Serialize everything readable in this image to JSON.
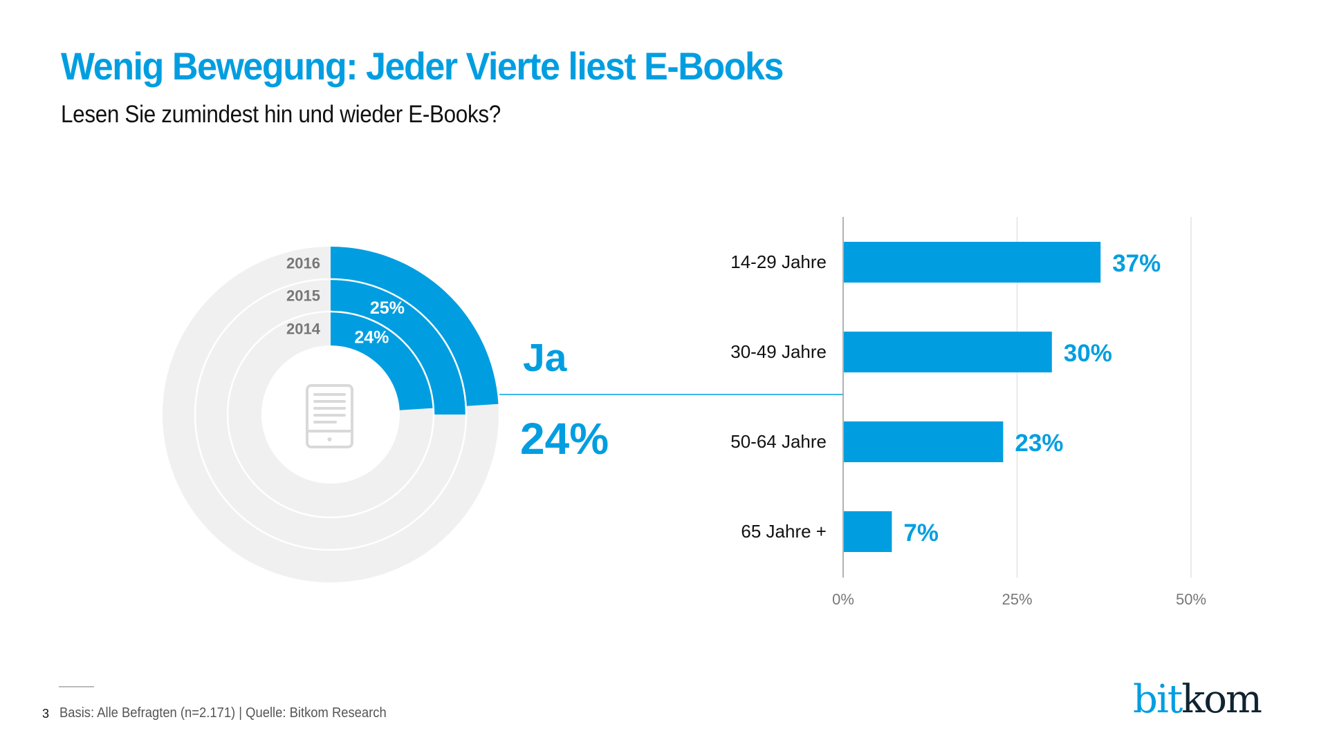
{
  "header": {
    "title": "Wenig Bewegung: Jeder Vierte liest E-Books",
    "subtitle": "Lesen Sie zumindest hin und wieder E-Books?"
  },
  "colors": {
    "accent": "#009ee0",
    "ring_bg": "#f0f0f0",
    "year_label": "#777777",
    "axis": "#999999",
    "grid": "#dddddd",
    "tick_label": "#777777",
    "icon": "#d9d9d9",
    "logo_dark": "#0f2431"
  },
  "chart_data": [
    {
      "type": "pie",
      "subtype": "radial-rings",
      "title": "",
      "center_icon": "ebook-reader-icon",
      "series": [
        {
          "name": "2014",
          "value": 24,
          "label": "24%",
          "show_label": true
        },
        {
          "name": "2015",
          "value": 25,
          "label": "25%",
          "show_label": true
        },
        {
          "name": "2016",
          "value": 24,
          "label": "24%",
          "show_label": false
        }
      ],
      "max": 100,
      "callout": {
        "category": "Ja",
        "value": 24,
        "label": "24%"
      }
    },
    {
      "type": "bar",
      "orientation": "horizontal",
      "categories": [
        "14-29 Jahre",
        "30-49 Jahre",
        "50-64 Jahre",
        "65 Jahre +"
      ],
      "values": [
        37,
        30,
        23,
        7
      ],
      "value_labels": [
        "37%",
        "30%",
        "23%",
        "7%"
      ],
      "xlim": [
        0,
        50
      ],
      "xticks": [
        0,
        25,
        50
      ],
      "xtick_labels": [
        "0%",
        "25%",
        "50%"
      ],
      "grid": true,
      "xlabel": "",
      "ylabel": "",
      "legend": "none"
    }
  ],
  "footer": {
    "page_number": "3",
    "source": "Basis: Alle Befragten (n=2.171) | Quelle: Bitkom Research"
  },
  "logo": {
    "part1": "bit",
    "part2": "kom"
  }
}
